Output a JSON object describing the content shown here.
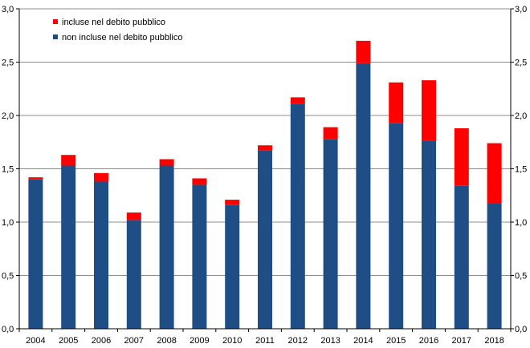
{
  "chart_data": {
    "type": "bar",
    "stacked": true,
    "categories": [
      "2004",
      "2005",
      "2006",
      "2007",
      "2008",
      "2009",
      "2010",
      "2011",
      "2012",
      "2013",
      "2014",
      "2015",
      "2016",
      "2017",
      "2018"
    ],
    "series": [
      {
        "name": "non incluse nel debito pubblico",
        "color": "#1f4e87",
        "values": [
          1.4,
          1.53,
          1.38,
          1.02,
          1.53,
          1.35,
          1.16,
          1.67,
          2.11,
          1.78,
          2.49,
          1.93,
          1.76,
          1.34,
          1.18
        ]
      },
      {
        "name": "incluse nel debito pubblico",
        "color": "#ff0000",
        "values": [
          0.02,
          0.1,
          0.08,
          0.07,
          0.06,
          0.06,
          0.05,
          0.05,
          0.06,
          0.11,
          0.21,
          0.38,
          0.57,
          0.54,
          0.56
        ]
      }
    ],
    "ylim": [
      0,
      3
    ],
    "yticks": [
      "0,0",
      "0,5",
      "1,0",
      "1,5",
      "2,0",
      "2,5",
      "3,0"
    ],
    "y_axis_both_sides": true,
    "grid": true,
    "legend_position": "top-left",
    "legend": [
      {
        "label": "incluse nel debito pubblico",
        "color": "#ff0000"
      },
      {
        "label": "non incluse nel debito pubblico",
        "color": "#1f4e87"
      }
    ],
    "title": "",
    "xlabel": "",
    "ylabel": ""
  }
}
